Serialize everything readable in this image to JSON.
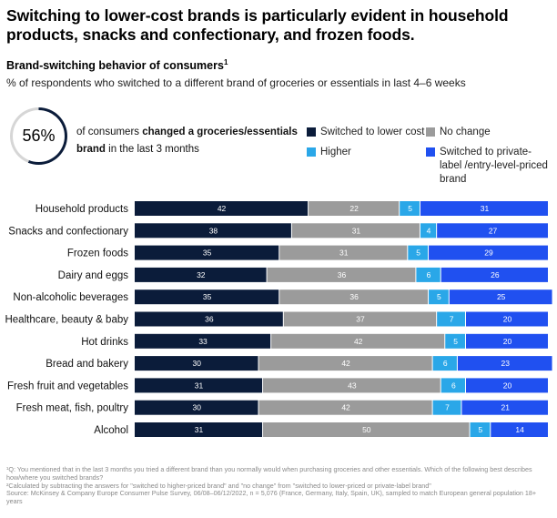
{
  "headline": "Switching to lower-cost brands is particularly evident in household products, snacks and confectionary, and frozen foods.",
  "subtitle": "Brand-switching behavior of consumers",
  "subtitle_sup": "1",
  "unit_note": "% of respondents who switched to a different brand of groceries or essentials in last 4–6 weeks",
  "kpi": {
    "value": "56%",
    "percent": 56,
    "text_pre": "of consumers ",
    "text_bold": "changed a groceries/essentials brand",
    "text_post": " in the last 3 months"
  },
  "colors": {
    "lower_cost": "#0b1c3a",
    "no_change": "#9b9b9b",
    "higher": "#2aa7e8",
    "private_label": "#2050f0"
  },
  "chart_data": {
    "type": "bar",
    "orientation": "horizontal",
    "stacked": true,
    "categories": [
      "Household products",
      "Snacks and confectionary",
      "Frozen foods",
      "Dairy and eggs",
      "Non-alcoholic beverages",
      "Healthcare, beauty & baby",
      "Hot drinks",
      "Bread and bakery",
      "Fresh fruit and vegetables",
      "Fresh meat, fish, poultry",
      "Alcohol"
    ],
    "series": [
      {
        "name": "Switched to lower cost",
        "color": "#0b1c3a",
        "label_color": "#ffffff",
        "values": [
          42,
          38,
          35,
          32,
          35,
          36,
          33,
          30,
          31,
          30,
          31
        ]
      },
      {
        "name": "No change",
        "color": "#9b9b9b",
        "label_color": "#ffffff",
        "values": [
          22,
          31,
          31,
          36,
          36,
          37,
          42,
          42,
          43,
          42,
          50
        ]
      },
      {
        "name": "Higher",
        "color": "#2aa7e8",
        "label_color": "#ffffff",
        "values": [
          5,
          4,
          5,
          6,
          5,
          7,
          5,
          6,
          6,
          7,
          5
        ]
      },
      {
        "name": "Switched to private-label /entry-level-priced brand",
        "color": "#2050f0",
        "label_color": "#ffffff",
        "values": [
          31,
          27,
          29,
          26,
          25,
          20,
          20,
          23,
          20,
          21,
          14
        ]
      }
    ],
    "xlim": [
      0,
      100
    ],
    "legend": "top-right"
  },
  "legend_items": [
    {
      "label": "Switched to lower cost",
      "color": "#0b1c3a"
    },
    {
      "label": "No change",
      "color": "#9b9b9b"
    },
    {
      "label": "Higher",
      "color": "#2aa7e8"
    },
    {
      "label": "Switched to private-label /entry-level-priced brand",
      "color": "#2050f0"
    }
  ],
  "footnotes": {
    "note1": "¹Q: You mentioned that in the last 3 months you tried a different brand than you normally would when purchasing groceries and other essentials. Which of the following best describes how/where you switched brands?",
    "note2": "²Calculated by subtracting the answers for \"switched to higher-priced brand\" and \"no change\" from \"switched to lower-priced or private-label brand\"",
    "source": "Source: McKinsey & Company Europe Consumer Pulse Survey, 06/08–06/12/2022, n = 5,076 (France, Germany, Italy, Spain, UK), sampled to match European general population 18+ years"
  }
}
